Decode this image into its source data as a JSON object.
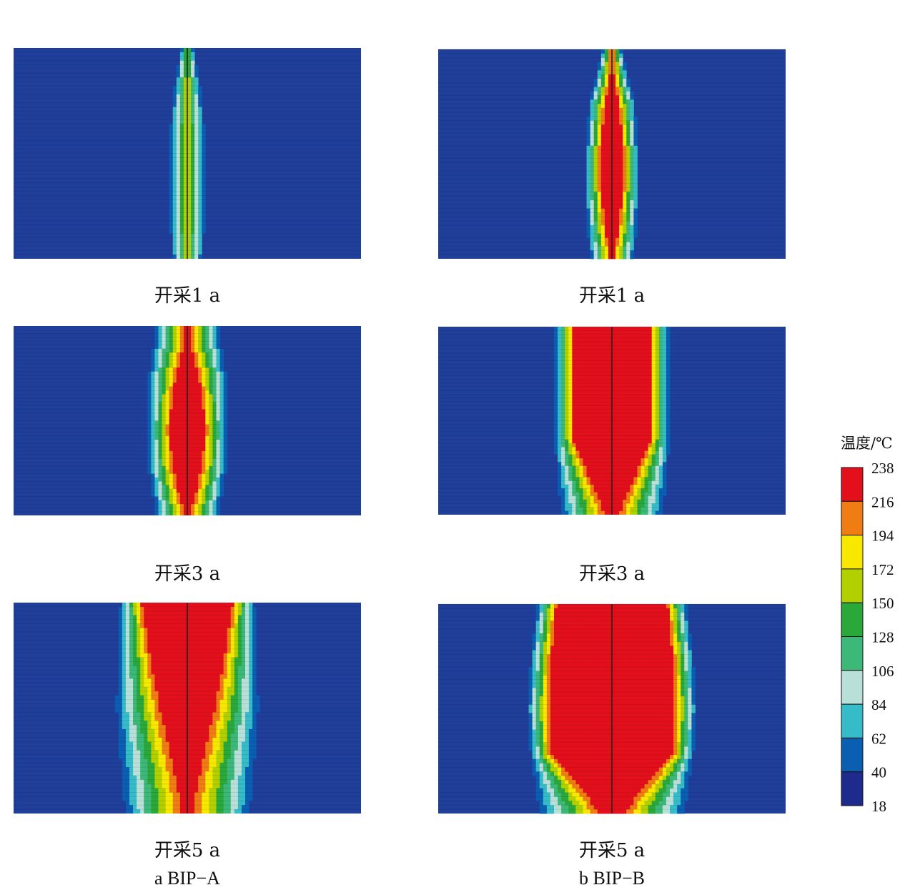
{
  "chart_data": {
    "type": "heatmap",
    "legend": {
      "title": "温度/℃",
      "ticks": [
        "238",
        "216",
        "194",
        "172",
        "150",
        "128",
        "106",
        "84",
        "62",
        "40",
        "18"
      ],
      "colors": [
        "#e3101b",
        "#ef7d14",
        "#f8e800",
        "#b2d000",
        "#2aa83a",
        "#3cb878",
        "#b8e0d8",
        "#36bcc9",
        "#0a5fb2",
        "#1e2a8c"
      ],
      "range": [
        18,
        238
      ]
    },
    "columns": [
      {
        "label": "a  BIP−A",
        "panels": [
          {
            "caption": "开采1 a",
            "max_temp": 180,
            "plume_halfwidth": [
              0.02,
              0.05,
              0.06,
              0.06,
              0.05
            ],
            "hot_core": "none"
          },
          {
            "caption": "开采3 a",
            "max_temp": 238,
            "plume_halfwidth": [
              0.1,
              0.12,
              0.12,
              0.12,
              0.1
            ],
            "hot_core": "narrow"
          },
          {
            "caption": "开采5 a",
            "max_temp": 238,
            "plume_halfwidth": [
              0.2,
              0.21,
              0.22,
              0.21,
              0.2
            ],
            "hot_core": "v-shape"
          }
        ]
      },
      {
        "label": "b  BIP−B",
        "panels": [
          {
            "caption": "开采1 a",
            "max_temp": 238,
            "plume_halfwidth": [
              0.03,
              0.07,
              0.08,
              0.08,
              0.07
            ],
            "hot_core": "narrow"
          },
          {
            "caption": "开采3 a",
            "max_temp": 238,
            "plume_halfwidth": [
              0.17,
              0.17,
              0.17,
              0.17,
              0.16
            ],
            "hot_core": "wide-taper"
          },
          {
            "caption": "开采5 a",
            "max_temp": 238,
            "plume_halfwidth": [
              0.22,
              0.24,
              0.25,
              0.24,
              0.23
            ],
            "hot_core": "bulb"
          }
        ]
      }
    ]
  }
}
